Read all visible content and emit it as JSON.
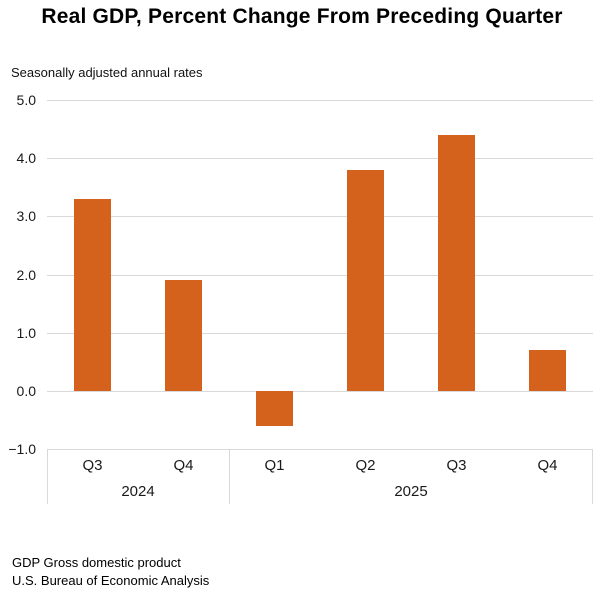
{
  "title": "Real GDP, Percent Change From Preceding Quarter",
  "subtitle": "Seasonally adjusted annual rates",
  "chart_data": {
    "type": "bar",
    "categories": [
      "Q3",
      "Q4",
      "Q1",
      "Q2",
      "Q3",
      "Q4"
    ],
    "year_groups": [
      {
        "label": "2024",
        "span": 2
      },
      {
        "label": "2025",
        "span": 4
      }
    ],
    "values": [
      3.3,
      1.9,
      -0.6,
      3.8,
      4.4,
      0.7
    ],
    "title": "Real GDP, Percent Change From Preceding Quarter",
    "subtitle": "Seasonally adjusted annual rates",
    "xlabel": "",
    "ylabel": "",
    "ylim": [
      -1.0,
      5.0
    ],
    "ytick_step": 1.0,
    "ytick_labels": [
      "5.0",
      "4.0",
      "3.0",
      "2.0",
      "1.0",
      "0.0",
      "−1.0"
    ],
    "grid": true,
    "legend": false
  },
  "colors": {
    "bar": "#d4611c",
    "gridline": "#d9d9d9",
    "text": "#1a1a1a"
  },
  "footer": {
    "line1": "GDP Gross domestic product",
    "line2": "U.S. Bureau of Economic Analysis"
  }
}
